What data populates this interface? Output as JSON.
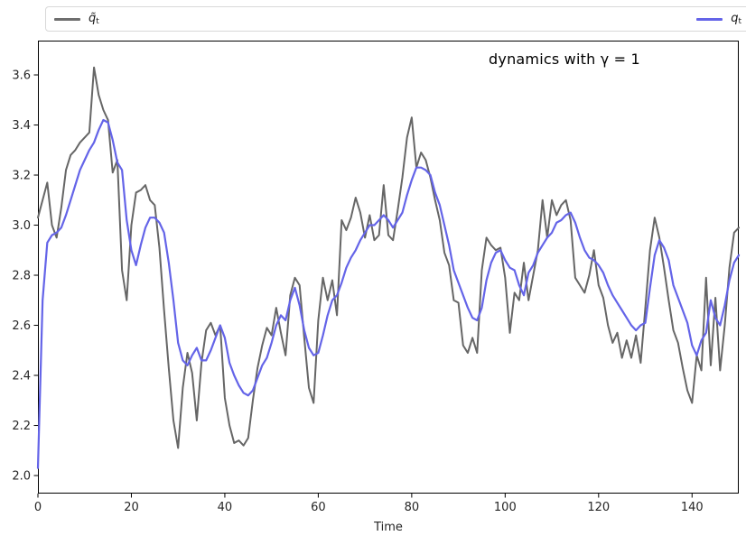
{
  "figure": {
    "background": "#ffffff"
  },
  "title": {
    "text": "dynamics with γ = 1"
  },
  "legend": {
    "entries": [
      {
        "label_base": "q̃",
        "label_sub": "t",
        "color": "#6e6e6e"
      },
      {
        "label_base": "q",
        "label_sub": "t",
        "color": "#6464e8"
      }
    ]
  },
  "axes": {
    "xlabel": "Time",
    "xtick_labels": [
      "0",
      "20",
      "40",
      "60",
      "80",
      "100",
      "120",
      "140"
    ],
    "ytick_labels": [
      "2.0",
      "2.2",
      "2.4",
      "2.6",
      "2.8",
      "3.0",
      "3.2",
      "3.4",
      "3.6"
    ],
    "spine_color": "#000000",
    "tick_label_color": "#262626"
  },
  "chart_data": {
    "type": "line",
    "title": "dynamics with γ = 1",
    "xlabel": "Time",
    "ylabel": "",
    "xlim": [
      0,
      150
    ],
    "ylim": [
      1.928,
      3.737
    ],
    "xticks": [
      0,
      20,
      40,
      60,
      80,
      100,
      120,
      140
    ],
    "yticks": [
      2.0,
      2.2,
      2.4,
      2.6,
      2.8,
      3.0,
      3.2,
      3.4,
      3.6
    ],
    "grid": false,
    "legend_position": "top, expanded full-width, 2 columns",
    "x_start": 0,
    "x_step": 1,
    "series": [
      {
        "name": "q̃_t",
        "color": "#666666",
        "line_width": 2,
        "values": [
          3.03,
          3.1,
          3.17,
          3.0,
          2.95,
          3.07,
          3.22,
          3.28,
          3.3,
          3.33,
          3.35,
          3.37,
          3.63,
          3.52,
          3.46,
          3.42,
          3.21,
          3.26,
          2.82,
          2.7,
          3.0,
          3.13,
          3.14,
          3.16,
          3.1,
          3.08,
          2.91,
          2.66,
          2.43,
          2.22,
          2.11,
          2.35,
          2.49,
          2.41,
          2.22,
          2.45,
          2.58,
          2.61,
          2.56,
          2.6,
          2.31,
          2.2,
          2.13,
          2.14,
          2.12,
          2.15,
          2.3,
          2.43,
          2.52,
          2.59,
          2.56,
          2.67,
          2.57,
          2.48,
          2.72,
          2.79,
          2.76,
          2.55,
          2.35,
          2.29,
          2.62,
          2.79,
          2.7,
          2.78,
          2.64,
          3.02,
          2.98,
          3.03,
          3.11,
          3.05,
          2.95,
          3.04,
          2.94,
          2.96,
          3.16,
          2.96,
          2.94,
          3.06,
          3.19,
          3.35,
          3.43,
          3.23,
          3.29,
          3.26,
          3.19,
          3.1,
          3.02,
          2.89,
          2.84,
          2.7,
          2.69,
          2.52,
          2.49,
          2.55,
          2.49,
          2.82,
          2.95,
          2.92,
          2.9,
          2.91,
          2.79,
          2.57,
          2.73,
          2.7,
          2.85,
          2.7,
          2.8,
          2.9,
          3.1,
          2.95,
          3.1,
          3.04,
          3.08,
          3.1,
          3.02,
          2.79,
          2.76,
          2.73,
          2.8,
          2.9,
          2.76,
          2.71,
          2.6,
          2.53,
          2.57,
          2.47,
          2.54,
          2.47,
          2.56,
          2.45,
          2.67,
          2.9,
          3.03,
          2.95,
          2.83,
          2.7,
          2.58,
          2.53,
          2.43,
          2.34,
          2.29,
          2.48,
          2.42,
          2.79,
          2.44,
          2.71,
          2.42,
          2.6,
          2.83,
          2.97,
          2.99
        ]
      },
      {
        "name": "q_t",
        "color": "#6464e8",
        "line_width": 2.2,
        "values": [
          2.03,
          2.7,
          2.93,
          2.96,
          2.97,
          2.99,
          3.04,
          3.1,
          3.16,
          3.22,
          3.26,
          3.3,
          3.33,
          3.38,
          3.42,
          3.41,
          3.34,
          3.25,
          3.22,
          3.02,
          2.9,
          2.84,
          2.92,
          2.99,
          3.03,
          3.03,
          3.01,
          2.97,
          2.85,
          2.7,
          2.53,
          2.46,
          2.44,
          2.48,
          2.51,
          2.46,
          2.46,
          2.5,
          2.55,
          2.6,
          2.55,
          2.45,
          2.4,
          2.36,
          2.33,
          2.32,
          2.34,
          2.39,
          2.44,
          2.47,
          2.53,
          2.6,
          2.64,
          2.62,
          2.7,
          2.75,
          2.68,
          2.58,
          2.51,
          2.48,
          2.49,
          2.56,
          2.64,
          2.7,
          2.72,
          2.77,
          2.83,
          2.87,
          2.9,
          2.94,
          2.97,
          3.0,
          3.0,
          3.02,
          3.04,
          3.02,
          2.99,
          3.02,
          3.05,
          3.12,
          3.18,
          3.23,
          3.23,
          3.22,
          3.2,
          3.13,
          3.08,
          3.0,
          2.92,
          2.82,
          2.77,
          2.72,
          2.67,
          2.63,
          2.62,
          2.67,
          2.78,
          2.85,
          2.89,
          2.9,
          2.86,
          2.83,
          2.82,
          2.76,
          2.72,
          2.81,
          2.84,
          2.89,
          2.92,
          2.95,
          2.97,
          3.01,
          3.02,
          3.04,
          3.05,
          3.01,
          2.95,
          2.9,
          2.87,
          2.86,
          2.84,
          2.81,
          2.76,
          2.72,
          2.69,
          2.66,
          2.63,
          2.6,
          2.58,
          2.6,
          2.61,
          2.75,
          2.88,
          2.94,
          2.91,
          2.86,
          2.76,
          2.71,
          2.66,
          2.61,
          2.52,
          2.48,
          2.54,
          2.57,
          2.7,
          2.63,
          2.6,
          2.68,
          2.78,
          2.85,
          2.88
        ]
      }
    ]
  }
}
